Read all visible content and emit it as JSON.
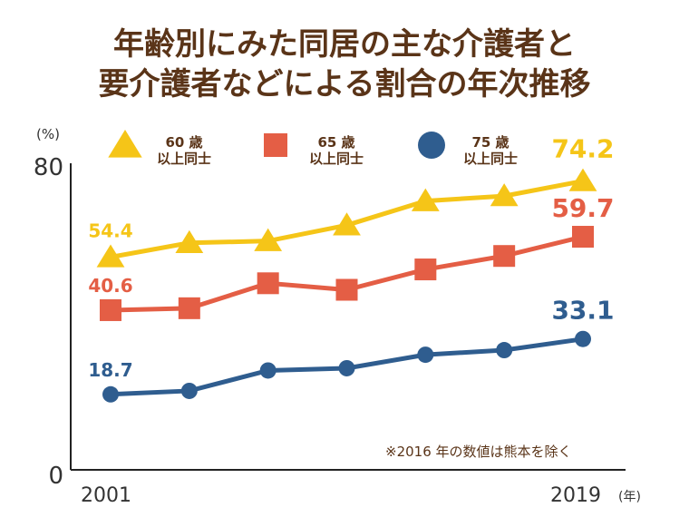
{
  "title_line1": "年齢別にみた同居の主な介護者と",
  "title_line2": "要介護者などによる割合の年次推移",
  "note": "※2016 年の数値は熊本を除く",
  "chart_data": {
    "type": "line",
    "title": "年齢別にみた同居の主な介護者と要介護者などによる割合の年次推移",
    "ylabel": "(%)",
    "xunit": "(年)",
    "ylim": [
      0,
      80
    ],
    "yticks": [
      "0",
      "80"
    ],
    "x": [
      2001,
      2004,
      2007,
      2010,
      2013,
      2016,
      2019
    ],
    "xtick_labels": [
      "2001",
      "2019"
    ],
    "grid": false,
    "legend_position": "top",
    "series": [
      {
        "name": "60 歳 以上同士",
        "name_line1": "60 歳",
        "name_line2": "以上同士",
        "marker": "triangle",
        "color": "#f5c518",
        "values": [
          54.4,
          58.1,
          58.6,
          62.7,
          69.0,
          70.3,
          74.2
        ],
        "labels": [
          "54.4",
          "74.2"
        ]
      },
      {
        "name": "65 歳 以上同士",
        "name_line1": "65 歳",
        "name_line2": "以上同士",
        "marker": "square",
        "color": "#e45e45",
        "values": [
          40.6,
          41.1,
          47.6,
          45.9,
          51.2,
          54.7,
          59.7
        ],
        "labels": [
          "40.6",
          "59.7"
        ]
      },
      {
        "name": "75 歳 以上同士",
        "name_line1": "75 歳",
        "name_line2": "以上同士",
        "marker": "circle",
        "color": "#2f5d8f",
        "values": [
          18.7,
          19.6,
          24.9,
          25.5,
          29.0,
          30.2,
          33.1
        ],
        "labels": [
          "18.7",
          "33.1"
        ]
      }
    ]
  }
}
